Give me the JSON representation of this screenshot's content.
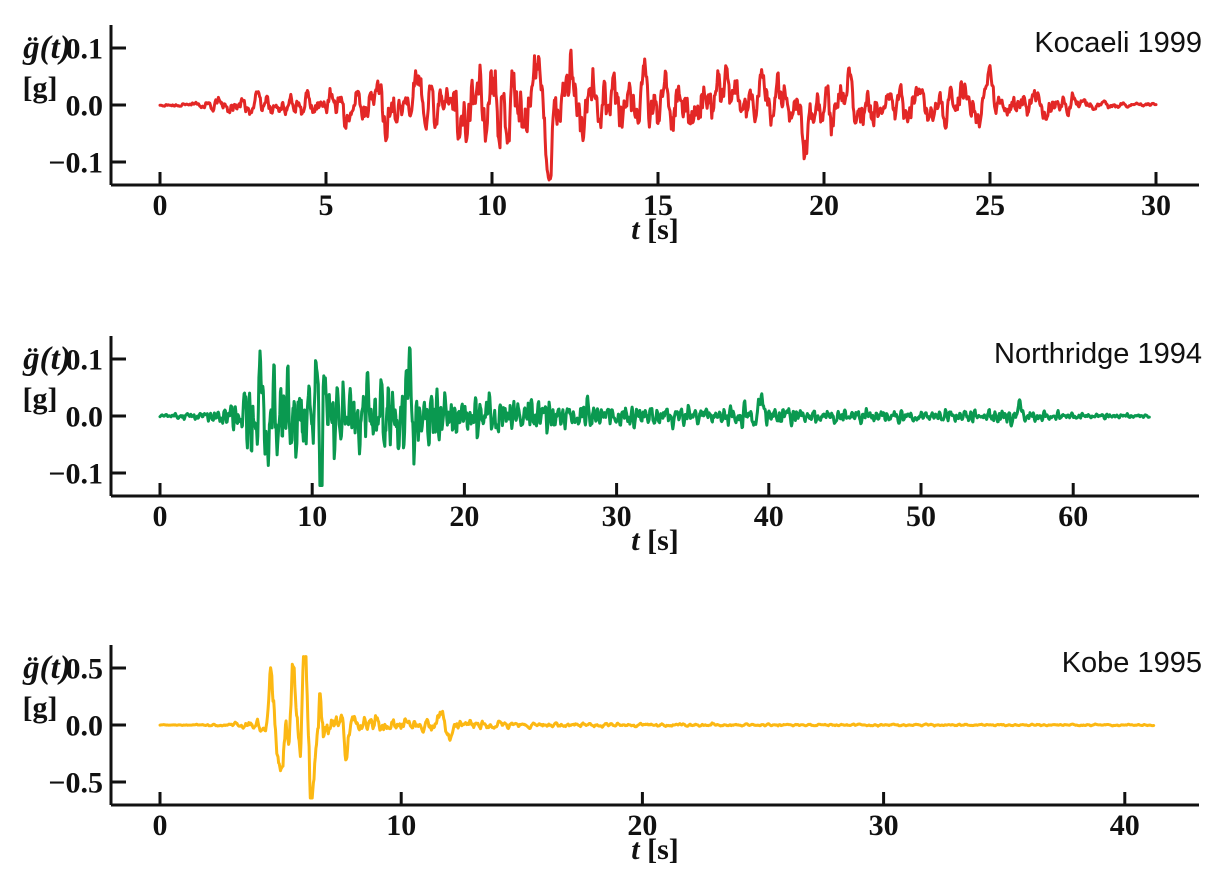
{
  "figure": {
    "description": "Three recorded earthquake ground-acceleration time histories (accelerograms)",
    "background": "#ffffff",
    "axis_color": "#111111",
    "ylabel_main": "g̈(t)",
    "ylabel_unit": "[g]",
    "xlabel_var": "t",
    "xlabel_unit": "[s]"
  },
  "chart_data": [
    {
      "type": "line",
      "title": "Kocaeli 1999",
      "color": "#e32726",
      "xlabel": "t [s]",
      "ylabel": "g̈(t) [g]",
      "xlim": [
        -1.5,
        31.3
      ],
      "ylim": [
        -0.14,
        0.14
      ],
      "xticks": [
        0,
        5,
        10,
        15,
        20,
        25,
        30
      ],
      "yticks": [
        {
          "v": 0.1,
          "label": "0.1"
        },
        {
          "v": 0.0,
          "label": "0.0"
        },
        {
          "v": -0.1,
          "label": "−0.1"
        }
      ],
      "duration": 30,
      "peak_acc_g": 0.12,
      "min_acc_g": -0.13,
      "legend": "none",
      "grid": false,
      "envelope": [
        [
          0,
          0.002
        ],
        [
          1,
          0.006
        ],
        [
          2,
          0.018
        ],
        [
          3,
          0.022
        ],
        [
          4,
          0.025
        ],
        [
          5,
          0.03
        ],
        [
          6,
          0.045
        ],
        [
          7,
          0.055
        ],
        [
          8,
          0.05
        ],
        [
          9,
          0.07
        ],
        [
          10,
          0.09
        ],
        [
          11,
          0.095
        ],
        [
          12,
          0.08
        ],
        [
          13,
          0.07
        ],
        [
          14,
          0.06
        ],
        [
          15,
          0.06
        ],
        [
          16,
          0.06
        ],
        [
          17,
          0.06
        ],
        [
          18,
          0.06
        ],
        [
          19,
          0.055
        ],
        [
          20,
          0.055
        ],
        [
          21,
          0.05
        ],
        [
          22,
          0.045
        ],
        [
          23,
          0.04
        ],
        [
          24,
          0.04
        ],
        [
          25,
          0.035
        ],
        [
          26,
          0.03
        ],
        [
          27,
          0.025
        ],
        [
          28,
          0.012
        ],
        [
          29,
          0.006
        ],
        [
          30,
          0.004
        ]
      ],
      "pulses": [
        [
          7.75,
          0.07,
          1.5,
          0.2
        ],
        [
          11.35,
          0.118,
          1.1,
          0.25
        ],
        [
          11.7,
          -0.128,
          0.9,
          0.3
        ],
        [
          12.4,
          0.09,
          1.2,
          0.25
        ],
        [
          14.6,
          0.07,
          1.3,
          0.2
        ],
        [
          16.9,
          0.075,
          1.3,
          0.2
        ],
        [
          18.1,
          0.08,
          1.4,
          0.2
        ],
        [
          19.4,
          -0.08,
          1.2,
          0.2
        ],
        [
          25.0,
          0.05,
          1.0,
          0.3
        ]
      ],
      "freqs": [
        0.9,
        1.4,
        2.1,
        2.7,
        3.3,
        1.8,
        4.1,
        0.6
      ],
      "seed": 11,
      "samples": 1500,
      "clip": [
        0.122,
        0.134
      ]
    },
    {
      "type": "line",
      "title": "Northridge 1994",
      "color": "#0a9950",
      "xlabel": "t [s]",
      "ylabel": "g̈(t) [g]",
      "xlim": [
        -3.2,
        68.2
      ],
      "ylim": [
        -0.14,
        0.14
      ],
      "xticks": [
        0,
        10,
        20,
        30,
        40,
        50,
        60
      ],
      "yticks": [
        {
          "v": 0.1,
          "label": "0.1"
        },
        {
          "v": 0.0,
          "label": "0.0"
        },
        {
          "v": -0.1,
          "label": "−0.1"
        }
      ],
      "duration": 65,
      "peak_acc_g": 0.126,
      "min_acc_g": -0.12,
      "legend": "none",
      "grid": false,
      "envelope": [
        [
          0,
          0.002
        ],
        [
          1,
          0.005
        ],
        [
          2,
          0.008
        ],
        [
          3,
          0.01
        ],
        [
          4,
          0.015
        ],
        [
          5,
          0.03
        ],
        [
          6,
          0.07
        ],
        [
          7,
          0.08
        ],
        [
          8,
          0.085
        ],
        [
          9,
          0.08
        ],
        [
          10,
          0.09
        ],
        [
          11,
          0.085
        ],
        [
          12,
          0.08
        ],
        [
          13,
          0.075
        ],
        [
          14,
          0.07
        ],
        [
          15,
          0.07
        ],
        [
          16,
          0.075
        ],
        [
          17,
          0.07
        ],
        [
          18,
          0.055
        ],
        [
          19,
          0.048
        ],
        [
          20,
          0.042
        ],
        [
          22,
          0.036
        ],
        [
          24,
          0.032
        ],
        [
          26,
          0.028
        ],
        [
          28,
          0.026
        ],
        [
          30,
          0.022
        ],
        [
          33,
          0.02
        ],
        [
          36,
          0.018
        ],
        [
          39,
          0.018
        ],
        [
          42,
          0.015
        ],
        [
          45,
          0.013
        ],
        [
          48,
          0.012
        ],
        [
          51,
          0.01
        ],
        [
          54,
          0.012
        ],
        [
          56,
          0.016
        ],
        [
          58,
          0.008
        ],
        [
          61,
          0.005
        ],
        [
          65,
          0.003
        ]
      ],
      "pulses": [
        [
          6.6,
          0.1,
          1.5,
          0.3
        ],
        [
          7.1,
          -0.1,
          1.6,
          0.3
        ],
        [
          10.25,
          0.125,
          1.8,
          0.2
        ],
        [
          10.6,
          -0.12,
          1.6,
          0.25
        ],
        [
          16.4,
          0.1,
          1.4,
          0.25
        ],
        [
          39.5,
          0.035,
          0.9,
          0.3
        ],
        [
          56.5,
          0.022,
          0.8,
          0.4
        ]
      ],
      "freqs": [
        1.2,
        2.2,
        3.1,
        3.8,
        2.6,
        1.7,
        4.4,
        0.8
      ],
      "seed": 23,
      "samples": 1800,
      "clip": [
        0.127,
        0.122
      ]
    },
    {
      "type": "line",
      "title": "Kobe 1995",
      "color": "#fcb813",
      "xlabel": "t [s]",
      "ylabel": "g̈(t) [g]",
      "xlim": [
        -2.0,
        43.1
      ],
      "ylim": [
        -0.7,
        0.7
      ],
      "xticks": [
        0,
        10,
        20,
        30,
        40
      ],
      "yticks": [
        {
          "v": 0.5,
          "label": "0.5"
        },
        {
          "v": 0.0,
          "label": "0.0"
        },
        {
          "v": -0.5,
          "label": "−0.5"
        }
      ],
      "duration": 41.2,
      "peak_acc_g": 0.6,
      "min_acc_g": -0.63,
      "legend": "none",
      "grid": false,
      "envelope": [
        [
          0,
          0.002
        ],
        [
          1,
          0.004
        ],
        [
          2,
          0.01
        ],
        [
          3,
          0.015
        ],
        [
          4,
          0.06
        ],
        [
          4.5,
          0.15
        ],
        [
          5,
          0.2
        ],
        [
          5.5,
          0.25
        ],
        [
          6,
          0.3
        ],
        [
          6.5,
          0.25
        ],
        [
          7,
          0.15
        ],
        [
          7.5,
          0.12
        ],
        [
          8,
          0.1
        ],
        [
          9,
          0.08
        ],
        [
          10,
          0.06
        ],
        [
          11,
          0.06
        ],
        [
          12,
          0.07
        ],
        [
          13,
          0.05
        ],
        [
          14,
          0.04
        ],
        [
          15,
          0.03
        ],
        [
          16,
          0.025
        ],
        [
          18,
          0.02
        ],
        [
          20,
          0.015
        ],
        [
          24,
          0.012
        ],
        [
          28,
          0.01
        ],
        [
          32,
          0.01
        ],
        [
          36,
          0.008
        ],
        [
          41.2,
          0.008
        ]
      ],
      "pulses": [
        [
          4.6,
          0.3,
          1.3,
          0.3
        ],
        [
          5.0,
          -0.37,
          1.3,
          0.25
        ],
        [
          5.55,
          0.55,
          1.5,
          0.25
        ],
        [
          6.0,
          0.58,
          1.6,
          0.22
        ],
        [
          6.3,
          -0.62,
          1.4,
          0.22
        ],
        [
          7.7,
          -0.26,
          1.5,
          0.2
        ],
        [
          11.6,
          0.08,
          1.5,
          0.3
        ],
        [
          12.0,
          -0.15,
          1.6,
          0.25
        ]
      ],
      "freqs": [
        0.8,
        1.3,
        2.4,
        3.4,
        4.5,
        1.9,
        2.9,
        0.7
      ],
      "seed": 37,
      "samples": 1600,
      "clip": [
        0.6,
        0.64
      ]
    }
  ]
}
